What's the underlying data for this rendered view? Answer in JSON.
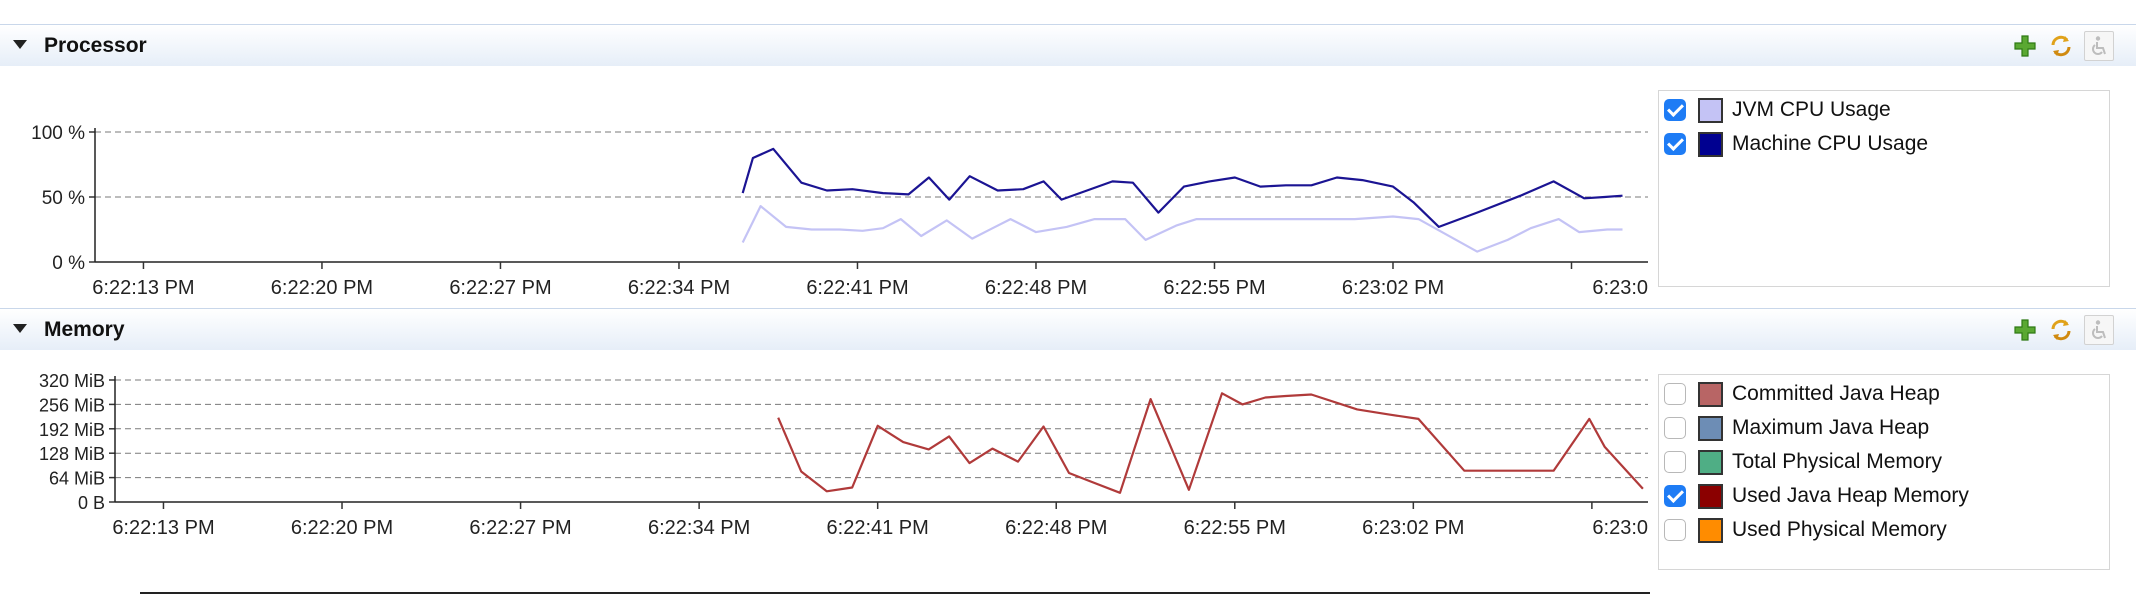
{
  "processor": {
    "title": "Processor",
    "toolbar_icons": [
      "add-icon",
      "refresh-icon",
      "accessibility-icon"
    ],
    "chart_data": {
      "type": "line",
      "ylim": [
        0,
        100
      ],
      "y_ticks": [
        "100 %",
        "50 %",
        "0 %"
      ],
      "y_tick_values": [
        100,
        50,
        0
      ],
      "x_ticks": [
        "6:22:13 PM",
        "6:22:20 PM",
        "6:22:27 PM",
        "6:22:34 PM",
        "6:22:41 PM",
        "6:22:48 PM",
        "6:22:55 PM",
        "6:23:02 PM",
        "6:23:0"
      ],
      "x_tick_values": [
        13,
        20,
        27,
        34,
        41,
        48,
        55,
        62,
        69
      ],
      "xlim": [
        11.1,
        72.0
      ],
      "grid": true,
      "series": [
        {
          "name": "JVM CPU Usage",
          "color": "#c4c3f5",
          "x": [
            36.5,
            37.2,
            38.2,
            39.2,
            40.3,
            41.2,
            42.0,
            42.7,
            43.5,
            44.5,
            45.5,
            46.3,
            47.0,
            48.0,
            49.2,
            50.3,
            51.5,
            52.3,
            53.5,
            54.3,
            55.3,
            56.2,
            59.5,
            60.5,
            62.0,
            63.0,
            65.3,
            66.5,
            67.4,
            68.5,
            69.3,
            70.4,
            71.0
          ],
          "values": [
            15,
            43,
            27,
            25,
            25,
            24,
            26,
            33,
            20,
            32,
            18,
            26,
            33,
            23,
            27,
            33,
            33,
            17,
            28,
            33,
            33,
            33,
            33,
            33,
            35,
            33,
            8,
            17,
            26,
            33,
            23,
            25,
            25
          ]
        },
        {
          "name": "Machine CPU Usage",
          "color": "#1b1493",
          "x": [
            36.5,
            36.9,
            37.7,
            38.8,
            39.8,
            40.8,
            42.0,
            43.0,
            43.8,
            44.6,
            45.4,
            46.5,
            47.5,
            48.3,
            49.0,
            50.0,
            51.0,
            51.8,
            52.8,
            53.8,
            54.8,
            55.8,
            56.8,
            57.8,
            58.8,
            59.8,
            60.8,
            62.0,
            62.8,
            63.8,
            65.3,
            67.0,
            68.3,
            69.5,
            70.3,
            71.0
          ],
          "values": [
            53,
            80,
            87,
            61,
            55,
            56,
            53,
            52,
            65,
            48,
            66,
            55,
            56,
            62,
            48,
            55,
            62,
            61,
            38,
            58,
            62,
            65,
            58,
            59,
            59,
            65,
            63,
            58,
            46,
            27,
            38,
            51,
            62,
            49,
            50,
            51
          ]
        }
      ]
    },
    "legend": [
      {
        "label": "JVM CPU Usage",
        "color": "#c4c3f5",
        "checked": true
      },
      {
        "label": "Machine CPU Usage",
        "color": "#000090",
        "checked": true
      }
    ]
  },
  "memory": {
    "title": "Memory",
    "toolbar_icons": [
      "add-icon",
      "refresh-icon",
      "accessibility-icon"
    ],
    "chart_data": {
      "type": "line",
      "ylim": [
        0,
        320
      ],
      "y_ticks": [
        "320 MiB",
        "256 MiB",
        "192 MiB",
        "128 MiB",
        "64 MiB",
        "0 B"
      ],
      "y_tick_values": [
        320,
        256,
        192,
        128,
        64,
        0
      ],
      "x_ticks": [
        "6:22:13 PM",
        "6:22:20 PM",
        "6:22:27 PM",
        "6:22:34 PM",
        "6:22:41 PM",
        "6:22:48 PM",
        "6:22:55 PM",
        "6:23:02 PM",
        "6:23:0"
      ],
      "x_tick_values": [
        13,
        20,
        27,
        34,
        41,
        48,
        55,
        62,
        69
      ],
      "xlim": [
        11.1,
        71.2
      ],
      "grid": true,
      "series": [
        {
          "name": "Used Java Heap Memory",
          "color": "#b03a3a",
          "x": [
            37.1,
            38.0,
            39.0,
            40.0,
            41.0,
            42.0,
            43.0,
            43.8,
            44.6,
            45.5,
            46.5,
            47.5,
            48.5,
            49.3,
            50.5,
            51.7,
            53.2,
            54.5,
            55.3,
            56.2,
            57.0,
            58.0,
            59.8,
            61.0,
            62.2,
            64.0,
            66.0,
            67.5,
            68.9,
            69.5,
            71.0
          ],
          "values": [
            221,
            80,
            28,
            38,
            200,
            157,
            138,
            172,
            102,
            140,
            106,
            198,
            76,
            55,
            24,
            270,
            32,
            285,
            256,
            274,
            278,
            282,
            243,
            230,
            218,
            82,
            82,
            82,
            218,
            145,
            35
          ]
        }
      ]
    },
    "legend": [
      {
        "label": "Committed Java Heap",
        "color": "#b86565",
        "checked": false
      },
      {
        "label": "Maximum Java Heap",
        "color": "#6d8db5",
        "checked": false
      },
      {
        "label": "Total Physical Memory",
        "color": "#4fae85",
        "checked": false
      },
      {
        "label": "Used Java Heap Memory",
        "color": "#8b0000",
        "checked": true
      },
      {
        "label": "Used Physical Memory",
        "color": "#ff8c00",
        "checked": false
      }
    ]
  }
}
